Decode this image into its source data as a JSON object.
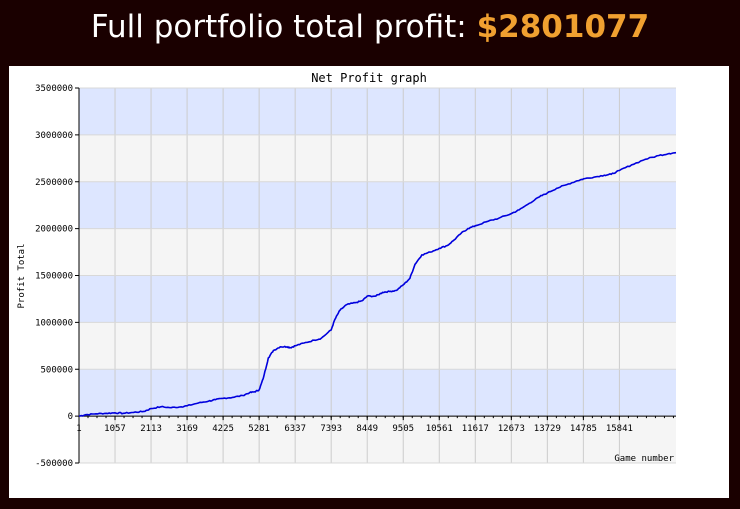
{
  "header": {
    "label": "Full portfolio total profit:",
    "amount": "$2801077"
  },
  "chart_data": {
    "type": "line",
    "title": "Net Profit graph",
    "xlabel": "Game number",
    "ylabel": "Profit Total",
    "xlim": [
      1,
      17500
    ],
    "ylim": [
      -500000,
      3500000
    ],
    "x_ticks": [
      1,
      1057,
      2113,
      3169,
      4225,
      5281,
      6337,
      7393,
      8449,
      9505,
      10561,
      11617,
      12673,
      13729,
      14785,
      15841
    ],
    "x_tick_labels": [
      "1",
      "1057",
      "2113",
      "3169",
      "4225",
      "5281",
      "6337",
      "7393",
      "8449",
      "9505",
      "10561",
      "11617",
      "12673",
      "13729",
      "14785",
      "15841"
    ],
    "y_ticks": [
      -500000,
      0,
      500000,
      1000000,
      1500000,
      2000000,
      2500000,
      3000000,
      3500000
    ],
    "y_tick_labels": [
      "-500000",
      "0",
      "500000",
      "1000000",
      "1500000",
      "2000000",
      "2500000",
      "3000000",
      "3500000"
    ],
    "band_colors": [
      "#dde6ff",
      "#f5f5f5"
    ],
    "line_color": "#0000dd",
    "grid": true,
    "series": [
      {
        "points": [
          [
            1,
            0
          ],
          [
            200,
            15000
          ],
          [
            500,
            25000
          ],
          [
            800,
            30000
          ],
          [
            1057,
            35000
          ],
          [
            1300,
            30000
          ],
          [
            1600,
            40000
          ],
          [
            1900,
            50000
          ],
          [
            2113,
            80000
          ],
          [
            2400,
            100000
          ],
          [
            2700,
            90000
          ],
          [
            3000,
            100000
          ],
          [
            3169,
            110000
          ],
          [
            3500,
            140000
          ],
          [
            3800,
            160000
          ],
          [
            4000,
            175000
          ],
          [
            4225,
            190000
          ],
          [
            4500,
            200000
          ],
          [
            4800,
            220000
          ],
          [
            5000,
            250000
          ],
          [
            5150,
            260000
          ],
          [
            5281,
            280000
          ],
          [
            5400,
            400000
          ],
          [
            5550,
            620000
          ],
          [
            5700,
            700000
          ],
          [
            5900,
            740000
          ],
          [
            6100,
            740000
          ],
          [
            6200,
            730000
          ],
          [
            6337,
            750000
          ],
          [
            6600,
            780000
          ],
          [
            6900,
            810000
          ],
          [
            7100,
            830000
          ],
          [
            7393,
            920000
          ],
          [
            7500,
            1030000
          ],
          [
            7650,
            1130000
          ],
          [
            7850,
            1190000
          ],
          [
            8100,
            1210000
          ],
          [
            8300,
            1230000
          ],
          [
            8449,
            1280000
          ],
          [
            8700,
            1280000
          ],
          [
            8900,
            1320000
          ],
          [
            9100,
            1330000
          ],
          [
            9300,
            1340000
          ],
          [
            9505,
            1400000
          ],
          [
            9700,
            1470000
          ],
          [
            9850,
            1620000
          ],
          [
            10050,
            1720000
          ],
          [
            10300,
            1750000
          ],
          [
            10561,
            1790000
          ],
          [
            10800,
            1820000
          ],
          [
            11000,
            1880000
          ],
          [
            11200,
            1950000
          ],
          [
            11400,
            2000000
          ],
          [
            11617,
            2030000
          ],
          [
            12000,
            2080000
          ],
          [
            12300,
            2110000
          ],
          [
            12673,
            2160000
          ],
          [
            12900,
            2200000
          ],
          [
            13200,
            2270000
          ],
          [
            13500,
            2340000
          ],
          [
            13729,
            2380000
          ],
          [
            14000,
            2430000
          ],
          [
            14300,
            2470000
          ],
          [
            14600,
            2510000
          ],
          [
            14785,
            2530000
          ],
          [
            15100,
            2550000
          ],
          [
            15400,
            2570000
          ],
          [
            15600,
            2580000
          ],
          [
            15841,
            2620000
          ],
          [
            16200,
            2680000
          ],
          [
            16600,
            2740000
          ],
          [
            17000,
            2780000
          ],
          [
            17300,
            2801077
          ],
          [
            17500,
            2810000
          ]
        ]
      }
    ]
  }
}
